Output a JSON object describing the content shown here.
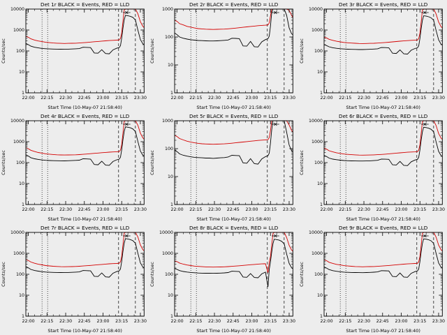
{
  "page": {
    "background": "#ededed",
    "axis_color": "#000000",
    "events_color": "#000000",
    "lld_color": "#d40000"
  },
  "chart_data": {
    "type": "line",
    "layout": "3x3-grid",
    "x_label": "Start Time (10-May-07 21:58:40)",
    "y_label": "Counts/sec",
    "y_scale": "log",
    "x_tick_labels": [
      "22:00",
      "22:15",
      "22:30",
      "22:45",
      "23:00",
      "23:15",
      "23:30"
    ],
    "x_tick_minutes": [
      0,
      15,
      30,
      45,
      60,
      75,
      90
    ],
    "x_range_minutes": [
      -2,
      93
    ],
    "legend": {
      "black": "Events",
      "red": "LLD"
    },
    "vlines": [
      {
        "x_minutes": 11,
        "style": "dotted"
      },
      {
        "x_minutes": 15.5,
        "style": "dotted"
      },
      {
        "x_minutes": 72.5,
        "style": "dashed"
      },
      {
        "x_minutes": 86,
        "style": "dashed"
      }
    ],
    "top_marker": {
      "x_minutes": 79,
      "half_width_minutes": 3
    },
    "x_minutes": [
      -2,
      0,
      2,
      5,
      8,
      11,
      14,
      17,
      20,
      23,
      26,
      29,
      32,
      35,
      38,
      41,
      44,
      47,
      50,
      53,
      56,
      59,
      62,
      65,
      68,
      71,
      73,
      74,
      75,
      76,
      77,
      78,
      80,
      82,
      84,
      86,
      88,
      90,
      92,
      93
    ],
    "panels": [
      {
        "title": "Det 1r BLACK = Events, RED = LLD",
        "ylim": [
          1,
          10000
        ],
        "lld": [
          500,
          450,
          380,
          330,
          300,
          280,
          260,
          250,
          240,
          235,
          230,
          228,
          230,
          232,
          235,
          240,
          248,
          256,
          265,
          275,
          285,
          295,
          305,
          315,
          322,
          328,
          335,
          400,
          700,
          2500,
          9000,
          15000,
          15000,
          15000,
          14000,
          12000,
          6000,
          2500,
          1500,
          1300
        ],
        "events": [
          230,
          200,
          170,
          150,
          140,
          132,
          128,
          125,
          123,
          122,
          121,
          120,
          122,
          124,
          127,
          130,
          150,
          148,
          145,
          80,
          78,
          115,
          75,
          73,
          112,
          135,
          145,
          180,
          400,
          1200,
          3000,
          5000,
          4800,
          4500,
          4000,
          3000,
          1000,
          350,
          220,
          200
        ]
      },
      {
        "title": "Det 2r BLACK = Events, RED = LLD",
        "ylim": [
          1,
          1000
        ],
        "lld": [
          400,
          360,
          300,
          270,
          240,
          225,
          210,
          200,
          195,
          190,
          188,
          186,
          188,
          190,
          192,
          196,
          202,
          208,
          215,
          222,
          230,
          238,
          246,
          254,
          260,
          265,
          270,
          320,
          560,
          2000,
          7000,
          12000,
          12000,
          12000,
          11000,
          9000,
          5000,
          900,
          600,
          500
        ],
        "events": [
          140,
          120,
          100,
          90,
          84,
          80,
          77,
          75,
          74,
          73,
          72,
          72,
          73,
          74,
          76,
          78,
          90,
          89,
          87,
          48,
          47,
          69,
          45,
          44,
          67,
          81,
          87,
          108,
          240,
          720,
          1800,
          3000,
          2900,
          2700,
          2400,
          1800,
          600,
          210,
          130,
          120
        ]
      },
      {
        "title": "Det 3r BLACK = Events, RED = LLD",
        "ylim": [
          1,
          10000
        ],
        "lld": [
          450,
          420,
          360,
          320,
          290,
          272,
          255,
          246,
          238,
          232,
          228,
          226,
          228,
          230,
          233,
          238,
          245,
          253,
          262,
          272,
          282,
          292,
          302,
          312,
          320,
          326,
          332,
          396,
          690,
          2400,
          8800,
          15000,
          15000,
          15000,
          13500,
          11500,
          5800,
          2400,
          1450,
          1250
        ],
        "events": [
          200,
          180,
          158,
          142,
          134,
          128,
          124,
          121,
          119,
          118,
          117,
          117,
          118,
          120,
          123,
          127,
          146,
          144,
          141,
          78,
          76,
          112,
          73,
          71,
          109,
          131,
          141,
          175,
          390,
          1150,
          2900,
          4800,
          4600,
          4300,
          3800,
          2900,
          950,
          340,
          210,
          190
        ]
      },
      {
        "title": "Det 4r BLACK = Events, RED = LLD",
        "ylim": [
          1,
          10000
        ],
        "lld": [
          520,
          460,
          390,
          340,
          305,
          285,
          264,
          253,
          243,
          237,
          232,
          230,
          232,
          234,
          237,
          242,
          250,
          258,
          267,
          277,
          287,
          297,
          307,
          317,
          324,
          330,
          337,
          402,
          705,
          2520,
          9100,
          15000,
          15000,
          15000,
          14000,
          12000,
          6100,
          2550,
          1520,
          1320
        ],
        "events": [
          240,
          205,
          173,
          152,
          142,
          134,
          129,
          126,
          124,
          123,
          122,
          121,
          123,
          125,
          128,
          131,
          152,
          150,
          147,
          81,
          79,
          117,
          76,
          74,
          113,
          136,
          147,
          182,
          405,
          1220,
          3050,
          5100,
          4900,
          4600,
          4050,
          3050,
          1020,
          355,
          225,
          205
        ]
      },
      {
        "title": "Det 5r BLACK = Events, RED = LLD",
        "ylim": [
          1,
          1000
        ],
        "lld": [
          300,
          270,
          230,
          205,
          185,
          172,
          162,
          155,
          150,
          147,
          145,
          144,
          145,
          147,
          149,
          152,
          157,
          162,
          168,
          173,
          179,
          185,
          191,
          197,
          202,
          206,
          210,
          250,
          440,
          1560,
          5500,
          9000,
          9000,
          9000,
          8400,
          7000,
          3800,
          700,
          450,
          400
        ],
        "events": [
          90,
          78,
          65,
          58,
          54,
          51,
          49,
          48,
          47,
          46,
          46,
          45,
          46,
          47,
          48,
          50,
          58,
          57,
          56,
          31,
          30,
          44,
          29,
          28,
          43,
          52,
          56,
          69,
          155,
          465,
          1160,
          1930,
          1870,
          1740,
          1550,
          1160,
          390,
          135,
          84,
          77
        ]
      },
      {
        "title": "Det 6r BLACK = Events, RED = LLD",
        "ylim": [
          1,
          10000
        ],
        "lld": [
          480,
          440,
          370,
          325,
          295,
          276,
          258,
          248,
          240,
          234,
          229,
          227,
          229,
          231,
          234,
          239,
          246,
          254,
          263,
          273,
          283,
          293,
          303,
          313,
          321,
          327,
          333,
          398,
          695,
          2450,
          8900,
          15000,
          15000,
          15000,
          13800,
          11800,
          5900,
          2450,
          1480,
          1280
        ],
        "events": [
          220,
          195,
          165,
          147,
          138,
          131,
          126,
          123,
          121,
          120,
          119,
          119,
          120,
          122,
          125,
          129,
          148,
          146,
          143,
          79,
          77,
          114,
          74,
          72,
          110,
          133,
          143,
          178,
          395,
          1180,
          2950,
          4900,
          4700,
          4400,
          3900,
          2950,
          980,
          345,
          215,
          195
        ]
      },
      {
        "title": "Det 7r BLACK = Events, RED = LLD",
        "ylim": [
          1,
          10000
        ],
        "lld": [
          510,
          455,
          385,
          335,
          302,
          282,
          262,
          251,
          241,
          236,
          231,
          229,
          231,
          233,
          236,
          241,
          249,
          257,
          266,
          276,
          286,
          296,
          306,
          316,
          323,
          329,
          336,
          401,
          702,
          2510,
          9050,
          15000,
          15000,
          15000,
          13900,
          11900,
          6050,
          2520,
          1510,
          1310
        ],
        "events": [
          235,
          202,
          171,
          151,
          141,
          133,
          128,
          125,
          123,
          122,
          121,
          120,
          122,
          124,
          127,
          130,
          151,
          149,
          146,
          80,
          78,
          116,
          75,
          73,
          112,
          135,
          146,
          181,
          402,
          1210,
          3020,
          5050,
          4850,
          4550,
          4020,
          3020,
          1010,
          352,
          222,
          202
        ]
      },
      {
        "title": "Det 8r BLACK = Events, RED = LLD",
        "ylim": [
          1,
          10000
        ],
        "lld": [
          430,
          400,
          345,
          305,
          278,
          261,
          246,
          238,
          231,
          226,
          222,
          220,
          222,
          224,
          227,
          232,
          239,
          247,
          256,
          266,
          276,
          286,
          296,
          306,
          313,
          318,
          120,
          380,
          680,
          2400,
          8700,
          15000,
          15000,
          15000,
          13600,
          11600,
          5700,
          2400,
          1440,
          1240
        ],
        "events": [
          190,
          170,
          150,
          136,
          128,
          122,
          118,
          115,
          113,
          112,
          112,
          111,
          112,
          114,
          117,
          121,
          140,
          138,
          135,
          74,
          72,
          108,
          70,
          68,
          105,
          127,
          25,
          170,
          385,
          1130,
          2850,
          4750,
          4550,
          4250,
          3750,
          2850,
          930,
          330,
          205,
          185
        ]
      },
      {
        "title": "Det 9r BLACK = Events, RED = LLD",
        "ylim": [
          1,
          10000
        ],
        "lld": [
          490,
          445,
          375,
          330,
          298,
          279,
          260,
          250,
          241,
          235,
          230,
          228,
          230,
          232,
          235,
          240,
          247,
          255,
          264,
          274,
          284,
          294,
          304,
          314,
          322,
          328,
          334,
          399,
          698,
          2480,
          8950,
          15000,
          15000,
          15000,
          13850,
          11850,
          5950,
          2480,
          1490,
          1290
        ],
        "events": [
          225,
          198,
          168,
          149,
          139,
          132,
          127,
          124,
          122,
          121,
          120,
          119,
          121,
          123,
          126,
          130,
          149,
          147,
          144,
          79,
          77,
          115,
          74,
          72,
          111,
          134,
          144,
          179,
          398,
          1190,
          2980,
          4950,
          4750,
          4450,
          3950,
          2980,
          990,
          348,
          218,
          198
        ]
      }
    ]
  }
}
